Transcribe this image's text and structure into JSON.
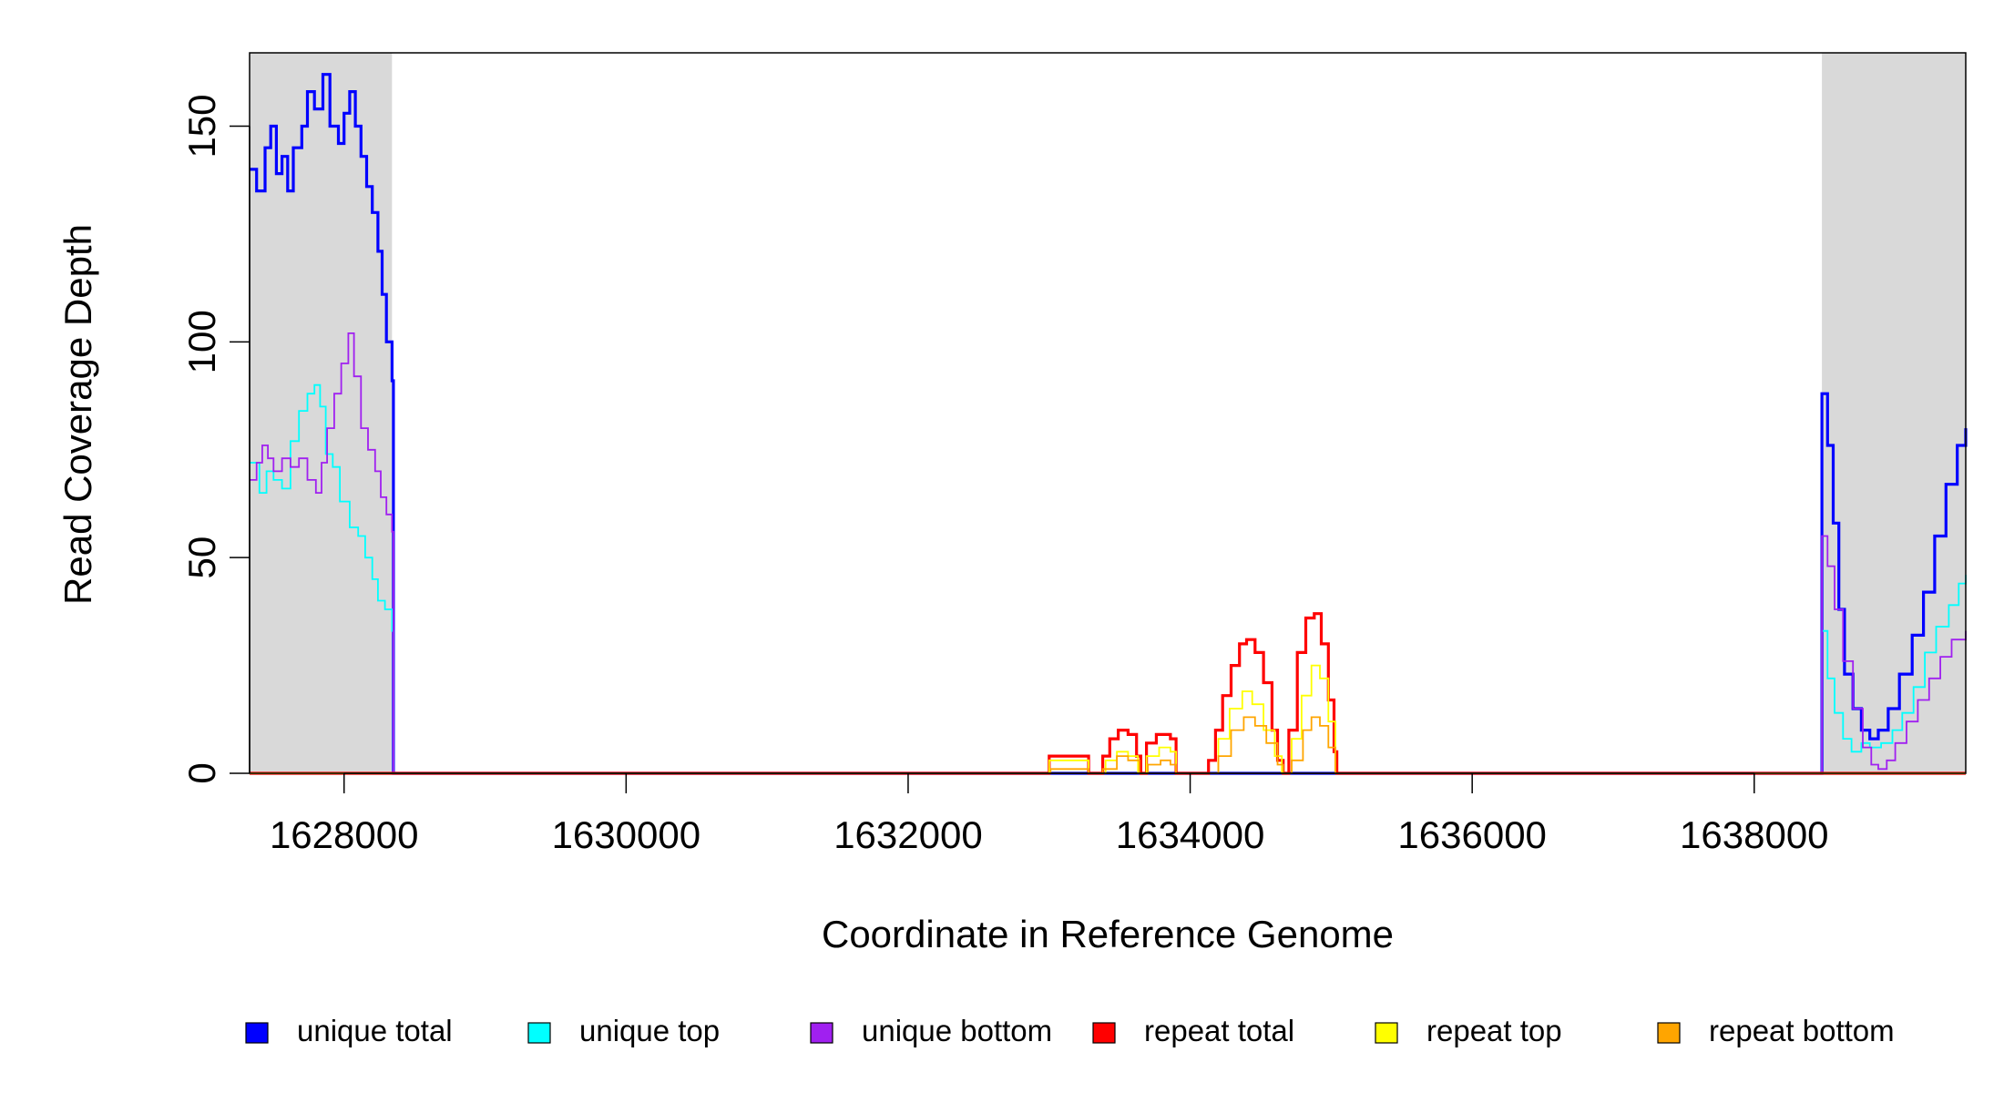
{
  "chart_data": {
    "type": "line",
    "xlabel": "Coordinate in Reference Genome",
    "ylabel": "Read Coverage Depth",
    "xlim": [
      1627330,
      1639500
    ],
    "ylim": [
      0,
      167
    ],
    "x_ticks": [
      1628000,
      1630000,
      1632000,
      1634000,
      1636000,
      1638000
    ],
    "y_ticks": [
      0,
      50,
      100,
      150
    ],
    "x_tick_labels": [
      "1628000",
      "1630000",
      "1632000",
      "1634000",
      "1636000",
      "1638000"
    ],
    "y_tick_labels": [
      "0",
      "50",
      "100",
      "150"
    ],
    "shaded_regions": [
      [
        1627330,
        1628340
      ],
      [
        1638480,
        1639500
      ]
    ],
    "legend_position": "bottom",
    "series": [
      {
        "name": "unique total",
        "color": "#0000FF",
        "points": [
          [
            1627330,
            140
          ],
          [
            1627380,
            135
          ],
          [
            1627440,
            145
          ],
          [
            1627480,
            150
          ],
          [
            1627520,
            139
          ],
          [
            1627560,
            143
          ],
          [
            1627600,
            135
          ],
          [
            1627640,
            145
          ],
          [
            1627700,
            150
          ],
          [
            1627740,
            158
          ],
          [
            1627790,
            154
          ],
          [
            1627850,
            162
          ],
          [
            1627900,
            150
          ],
          [
            1627960,
            146
          ],
          [
            1628000,
            153
          ],
          [
            1628040,
            158
          ],
          [
            1628080,
            150
          ],
          [
            1628120,
            143
          ],
          [
            1628160,
            136
          ],
          [
            1628200,
            130
          ],
          [
            1628240,
            121
          ],
          [
            1628270,
            111
          ],
          [
            1628300,
            100
          ],
          [
            1628340,
            91
          ],
          [
            1628350,
            0
          ],
          [
            1633000,
            0
          ],
          [
            1638470,
            0
          ],
          [
            1638480,
            88
          ],
          [
            1638520,
            76
          ],
          [
            1638560,
            58
          ],
          [
            1638600,
            38
          ],
          [
            1638640,
            23
          ],
          [
            1638700,
            15
          ],
          [
            1638760,
            10
          ],
          [
            1638820,
            8
          ],
          [
            1638880,
            10
          ],
          [
            1638950,
            15
          ],
          [
            1639030,
            23
          ],
          [
            1639120,
            32
          ],
          [
            1639200,
            42
          ],
          [
            1639280,
            55
          ],
          [
            1639360,
            67
          ],
          [
            1639440,
            76
          ],
          [
            1639500,
            80
          ]
        ]
      },
      {
        "name": "unique top",
        "color": "#00FFFF",
        "points": [
          [
            1627330,
            72
          ],
          [
            1627400,
            65
          ],
          [
            1627450,
            70
          ],
          [
            1627500,
            68
          ],
          [
            1627560,
            66
          ],
          [
            1627620,
            77
          ],
          [
            1627680,
            84
          ],
          [
            1627740,
            88
          ],
          [
            1627790,
            90
          ],
          [
            1627830,
            85
          ],
          [
            1627870,
            74
          ],
          [
            1627920,
            71
          ],
          [
            1627970,
            63
          ],
          [
            1628040,
            57
          ],
          [
            1628100,
            55
          ],
          [
            1628150,
            50
          ],
          [
            1628200,
            45
          ],
          [
            1628240,
            40
          ],
          [
            1628290,
            38
          ],
          [
            1628340,
            33
          ],
          [
            1628350,
            0
          ],
          [
            1638470,
            0
          ],
          [
            1638480,
            33
          ],
          [
            1638520,
            22
          ],
          [
            1638570,
            14
          ],
          [
            1638630,
            8
          ],
          [
            1638690,
            5
          ],
          [
            1638760,
            7
          ],
          [
            1638820,
            6
          ],
          [
            1638900,
            7
          ],
          [
            1638980,
            10
          ],
          [
            1639050,
            14
          ],
          [
            1639130,
            20
          ],
          [
            1639210,
            28
          ],
          [
            1639290,
            34
          ],
          [
            1639380,
            39
          ],
          [
            1639450,
            44
          ],
          [
            1639500,
            46
          ]
        ]
      },
      {
        "name": "unique bottom",
        "color": "#A020F0",
        "points": [
          [
            1627330,
            68
          ],
          [
            1627380,
            72
          ],
          [
            1627420,
            76
          ],
          [
            1627460,
            73
          ],
          [
            1627500,
            70
          ],
          [
            1627560,
            73
          ],
          [
            1627620,
            71
          ],
          [
            1627680,
            73
          ],
          [
            1627740,
            68
          ],
          [
            1627800,
            65
          ],
          [
            1627840,
            72
          ],
          [
            1627880,
            80
          ],
          [
            1627930,
            88
          ],
          [
            1627980,
            95
          ],
          [
            1628030,
            102
          ],
          [
            1628070,
            92
          ],
          [
            1628120,
            80
          ],
          [
            1628170,
            75
          ],
          [
            1628220,
            70
          ],
          [
            1628260,
            64
          ],
          [
            1628300,
            60
          ],
          [
            1628340,
            56
          ],
          [
            1628350,
            0
          ],
          [
            1638470,
            0
          ],
          [
            1638480,
            55
          ],
          [
            1638520,
            48
          ],
          [
            1638570,
            38
          ],
          [
            1638630,
            26
          ],
          [
            1638700,
            15
          ],
          [
            1638770,
            6
          ],
          [
            1638830,
            2
          ],
          [
            1638880,
            1
          ],
          [
            1638940,
            3
          ],
          [
            1639000,
            7
          ],
          [
            1639080,
            12
          ],
          [
            1639160,
            17
          ],
          [
            1639240,
            22
          ],
          [
            1639320,
            27
          ],
          [
            1639400,
            31
          ],
          [
            1639500,
            33
          ]
        ]
      },
      {
        "name": "repeat total",
        "color": "#FF0000",
        "points": [
          [
            1627330,
            0
          ],
          [
            1632980,
            0
          ],
          [
            1633000,
            4
          ],
          [
            1633100,
            4
          ],
          [
            1633200,
            4
          ],
          [
            1633280,
            0
          ],
          [
            1633330,
            0
          ],
          [
            1633380,
            4
          ],
          [
            1633430,
            8
          ],
          [
            1633490,
            10
          ],
          [
            1633560,
            9
          ],
          [
            1633620,
            4
          ],
          [
            1633650,
            0
          ],
          [
            1633690,
            7
          ],
          [
            1633760,
            9
          ],
          [
            1633820,
            9
          ],
          [
            1633860,
            8
          ],
          [
            1633900,
            0
          ],
          [
            1634100,
            0
          ],
          [
            1634130,
            3
          ],
          [
            1634180,
            10
          ],
          [
            1634230,
            18
          ],
          [
            1634290,
            25
          ],
          [
            1634350,
            30
          ],
          [
            1634400,
            31
          ],
          [
            1634460,
            28
          ],
          [
            1634520,
            21
          ],
          [
            1634580,
            10
          ],
          [
            1634620,
            3
          ],
          [
            1634660,
            0
          ],
          [
            1634700,
            10
          ],
          [
            1634760,
            28
          ],
          [
            1634820,
            36
          ],
          [
            1634880,
            37
          ],
          [
            1634930,
            30
          ],
          [
            1634980,
            17
          ],
          [
            1635020,
            5
          ],
          [
            1635040,
            0
          ],
          [
            1639500,
            0
          ]
        ]
      },
      {
        "name": "repeat top",
        "color": "#FFFF00",
        "points": [
          [
            1627330,
            0
          ],
          [
            1632980,
            0
          ],
          [
            1633000,
            3
          ],
          [
            1633200,
            3
          ],
          [
            1633280,
            0
          ],
          [
            1633330,
            0
          ],
          [
            1633400,
            3
          ],
          [
            1633480,
            5
          ],
          [
            1633560,
            4
          ],
          [
            1633630,
            0
          ],
          [
            1633690,
            4
          ],
          [
            1633780,
            6
          ],
          [
            1633860,
            5
          ],
          [
            1633900,
            0
          ],
          [
            1634120,
            0
          ],
          [
            1634200,
            8
          ],
          [
            1634280,
            15
          ],
          [
            1634370,
            19
          ],
          [
            1634440,
            16
          ],
          [
            1634520,
            10
          ],
          [
            1634600,
            4
          ],
          [
            1634650,
            0
          ],
          [
            1634720,
            8
          ],
          [
            1634790,
            18
          ],
          [
            1634860,
            25
          ],
          [
            1634920,
            22
          ],
          [
            1634980,
            12
          ],
          [
            1635030,
            0
          ],
          [
            1639500,
            0
          ]
        ]
      },
      {
        "name": "repeat bottom",
        "color": "#FFA500",
        "points": [
          [
            1627330,
            0
          ],
          [
            1632990,
            0
          ],
          [
            1633010,
            1
          ],
          [
            1633200,
            1
          ],
          [
            1633280,
            0
          ],
          [
            1633380,
            1
          ],
          [
            1633480,
            4
          ],
          [
            1633560,
            3
          ],
          [
            1633640,
            0
          ],
          [
            1633700,
            2
          ],
          [
            1633790,
            3
          ],
          [
            1633860,
            2
          ],
          [
            1633900,
            0
          ],
          [
            1634120,
            0
          ],
          [
            1634200,
            4
          ],
          [
            1634290,
            10
          ],
          [
            1634380,
            13
          ],
          [
            1634460,
            11
          ],
          [
            1634540,
            7
          ],
          [
            1634620,
            2
          ],
          [
            1634660,
            0
          ],
          [
            1634720,
            3
          ],
          [
            1634800,
            10
          ],
          [
            1634860,
            13
          ],
          [
            1634920,
            11
          ],
          [
            1634980,
            6
          ],
          [
            1635030,
            0
          ],
          [
            1639500,
            0
          ]
        ]
      }
    ]
  }
}
